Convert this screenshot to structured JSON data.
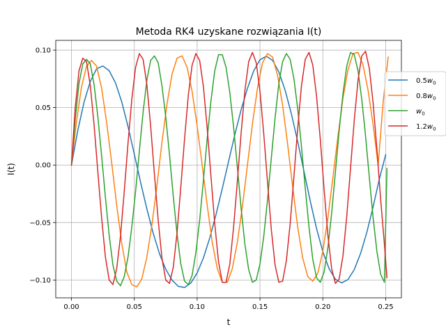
{
  "chart_data": {
    "type": "line",
    "title": "Metoda RK4 uzyskane rozwiązania I(t)",
    "xlabel": "t",
    "ylabel": "I(t)",
    "xlim": [
      -0.0125,
      0.2625
    ],
    "ylim": [
      -0.1155,
      0.1085
    ],
    "xticks": [
      0.0,
      0.05,
      0.1,
      0.15,
      0.2,
      0.25
    ],
    "xtick_labels": [
      "0.00",
      "0.05",
      "0.10",
      "0.15",
      "0.20",
      "0.25"
    ],
    "yticks": [
      -0.1,
      -0.05,
      0.0,
      0.05,
      0.1
    ],
    "ytick_labels": [
      "−0.10",
      "−0.05",
      "0.00",
      "0.05",
      "0.10"
    ],
    "grid": true,
    "legend_position": "right",
    "series": [
      {
        "name": "0.5w0",
        "label_parts": [
          "0.5",
          "w",
          "0"
        ],
        "color": "#1f77b4",
        "x": [
          0.0,
          0.005,
          0.01,
          0.015,
          0.02,
          0.025,
          0.03,
          0.035,
          0.04,
          0.045,
          0.05,
          0.055,
          0.06,
          0.065,
          0.07,
          0.075,
          0.08,
          0.085,
          0.09,
          0.095,
          0.1,
          0.105,
          0.11,
          0.115,
          0.12,
          0.125,
          0.13,
          0.135,
          0.14,
          0.145,
          0.15,
          0.155,
          0.16,
          0.165,
          0.17,
          0.175,
          0.18,
          0.185,
          0.19,
          0.195,
          0.2,
          0.205,
          0.21,
          0.215,
          0.22,
          0.225,
          0.23,
          0.235,
          0.24,
          0.245,
          0.25
        ],
        "y": [
          0.0,
          0.0299,
          0.0547,
          0.0728,
          0.0838,
          0.0862,
          0.0821,
          0.0716,
          0.055,
          0.0335,
          0.0095,
          -0.015,
          -0.0381,
          -0.0592,
          -0.077,
          -0.0906,
          -0.1001,
          -0.1055,
          -0.1065,
          -0.1026,
          -0.0939,
          -0.0807,
          -0.0635,
          -0.0431,
          -0.0204,
          0.0032,
          0.0266,
          0.0482,
          0.0667,
          0.0819,
          0.0916,
          0.0947,
          0.0911,
          0.081,
          0.0651,
          0.0444,
          0.0204,
          -0.0055,
          -0.0314,
          -0.0552,
          -0.0753,
          -0.0902,
          -0.0994,
          -0.1025,
          -0.0996,
          -0.0909,
          -0.077,
          -0.0585,
          -0.0364,
          -0.0119,
          0.009
        ]
      },
      {
        "name": "0.8w0",
        "label_parts": [
          "0.8",
          "w",
          "0"
        ],
        "color": "#ff7f0e",
        "x": [
          0.0,
          0.004,
          0.008,
          0.012,
          0.016,
          0.02,
          0.024,
          0.028,
          0.032,
          0.036,
          0.04,
          0.044,
          0.048,
          0.052,
          0.056,
          0.06,
          0.064,
          0.068,
          0.072,
          0.076,
          0.08,
          0.084,
          0.088,
          0.092,
          0.096,
          0.1,
          0.104,
          0.108,
          0.112,
          0.116,
          0.12,
          0.124,
          0.128,
          0.132,
          0.136,
          0.14,
          0.144,
          0.148,
          0.152,
          0.156,
          0.16,
          0.164,
          0.168,
          0.172,
          0.176,
          0.18,
          0.184,
          0.188,
          0.192,
          0.196,
          0.2,
          0.204,
          0.208,
          0.212,
          0.216,
          0.22,
          0.224,
          0.228,
          0.232,
          0.236,
          0.24,
          0.244,
          0.248,
          0.252
        ],
        "y": [
          0.0,
          0.038,
          0.068,
          0.086,
          0.091,
          0.086,
          0.067,
          0.037,
          0.002,
          -0.035,
          -0.068,
          -0.093,
          -0.104,
          -0.106,
          -0.099,
          -0.08,
          -0.052,
          -0.018,
          0.02,
          0.053,
          0.079,
          0.093,
          0.095,
          0.085,
          0.064,
          0.034,
          0.0,
          -0.035,
          -0.067,
          -0.09,
          -0.102,
          -0.102,
          -0.09,
          -0.067,
          -0.036,
          0.0,
          0.036,
          0.067,
          0.089,
          0.097,
          0.094,
          0.078,
          0.052,
          0.018,
          -0.019,
          -0.054,
          -0.081,
          -0.097,
          -0.101,
          -0.094,
          -0.075,
          -0.046,
          -0.011,
          0.025,
          0.058,
          0.083,
          0.097,
          0.098,
          0.087,
          0.065,
          0.035,
          0.0,
          0.055,
          0.094
        ]
      },
      {
        "name": "w0",
        "label_parts": [
          "",
          "w",
          "0"
        ],
        "color": "#2ca02c",
        "x": [
          0.0,
          0.003,
          0.006,
          0.009,
          0.012,
          0.015,
          0.018,
          0.021,
          0.024,
          0.027,
          0.03,
          0.033,
          0.036,
          0.039,
          0.042,
          0.045,
          0.048,
          0.051,
          0.054,
          0.057,
          0.06,
          0.063,
          0.066,
          0.069,
          0.072,
          0.075,
          0.078,
          0.081,
          0.084,
          0.087,
          0.09,
          0.093,
          0.096,
          0.099,
          0.102,
          0.105,
          0.108,
          0.111,
          0.114,
          0.117,
          0.12,
          0.123,
          0.126,
          0.129,
          0.132,
          0.135,
          0.138,
          0.141,
          0.144,
          0.147,
          0.15,
          0.153,
          0.156,
          0.159,
          0.162,
          0.165,
          0.168,
          0.171,
          0.174,
          0.177,
          0.18,
          0.183,
          0.186,
          0.189,
          0.192,
          0.195,
          0.198,
          0.201,
          0.204,
          0.207,
          0.21,
          0.213,
          0.216,
          0.219,
          0.222,
          0.225,
          0.228,
          0.231,
          0.234,
          0.237,
          0.24,
          0.243,
          0.246,
          0.249,
          0.251
        ],
        "y": [
          0.0,
          0.04,
          0.071,
          0.088,
          0.092,
          0.088,
          0.07,
          0.042,
          0.008,
          -0.028,
          -0.061,
          -0.087,
          -0.101,
          -0.105,
          -0.097,
          -0.08,
          -0.054,
          -0.023,
          0.012,
          0.046,
          0.074,
          0.091,
          0.095,
          0.089,
          0.069,
          0.042,
          0.009,
          -0.027,
          -0.06,
          -0.086,
          -0.101,
          -0.104,
          -0.096,
          -0.076,
          -0.048,
          -0.013,
          0.023,
          0.056,
          0.082,
          0.096,
          0.096,
          0.085,
          0.063,
          0.033,
          -0.002,
          -0.038,
          -0.069,
          -0.091,
          -0.102,
          -0.1,
          -0.086,
          -0.062,
          -0.03,
          0.006,
          0.041,
          0.071,
          0.09,
          0.097,
          0.092,
          0.075,
          0.049,
          0.016,
          -0.02,
          -0.054,
          -0.082,
          -0.098,
          -0.102,
          -0.093,
          -0.072,
          -0.042,
          -0.006,
          0.03,
          0.062,
          0.086,
          0.098,
          0.096,
          0.082,
          0.057,
          0.025,
          -0.011,
          -0.046,
          -0.075,
          -0.095,
          -0.102,
          -0.003
        ]
      },
      {
        "name": "1.2w0",
        "label_parts": [
          "1.2",
          "w",
          "0"
        ],
        "color": "#d62728",
        "x": [
          0.0,
          0.003,
          0.006,
          0.009,
          0.012,
          0.015,
          0.018,
          0.021,
          0.024,
          0.027,
          0.03,
          0.033,
          0.036,
          0.039,
          0.042,
          0.045,
          0.048,
          0.051,
          0.054,
          0.057,
          0.06,
          0.063,
          0.066,
          0.069,
          0.072,
          0.075,
          0.078,
          0.081,
          0.084,
          0.087,
          0.09,
          0.093,
          0.096,
          0.099,
          0.102,
          0.105,
          0.108,
          0.111,
          0.114,
          0.117,
          0.12,
          0.123,
          0.126,
          0.129,
          0.132,
          0.135,
          0.138,
          0.141,
          0.144,
          0.147,
          0.15,
          0.153,
          0.156,
          0.159,
          0.162,
          0.165,
          0.168,
          0.171,
          0.174,
          0.177,
          0.18,
          0.183,
          0.186,
          0.189,
          0.192,
          0.195,
          0.198,
          0.201,
          0.204,
          0.207,
          0.21,
          0.213,
          0.216,
          0.219,
          0.222,
          0.225,
          0.228,
          0.231,
          0.234,
          0.237,
          0.24,
          0.243,
          0.246,
          0.249,
          0.251
        ],
        "y": [
          0.0,
          0.05,
          0.082,
          0.093,
          0.09,
          0.069,
          0.035,
          -0.006,
          -0.046,
          -0.08,
          -0.1,
          -0.104,
          -0.09,
          -0.062,
          -0.023,
          0.019,
          0.057,
          0.085,
          0.097,
          0.092,
          0.07,
          0.034,
          -0.008,
          -0.048,
          -0.081,
          -0.1,
          -0.103,
          -0.089,
          -0.059,
          -0.019,
          0.023,
          0.061,
          0.087,
          0.097,
          0.091,
          0.068,
          0.032,
          -0.01,
          -0.051,
          -0.084,
          -0.102,
          -0.102,
          -0.086,
          -0.054,
          -0.014,
          0.028,
          0.065,
          0.09,
          0.098,
          0.089,
          0.064,
          0.027,
          -0.015,
          -0.056,
          -0.087,
          -0.102,
          -0.101,
          -0.083,
          -0.051,
          -0.01,
          0.032,
          0.069,
          0.092,
          0.098,
          0.087,
          0.06,
          0.022,
          -0.021,
          -0.061,
          -0.09,
          -0.103,
          -0.099,
          -0.079,
          -0.045,
          -0.003,
          0.039,
          0.074,
          0.095,
          0.099,
          0.084,
          0.054,
          0.014,
          -0.03,
          -0.069,
          -0.098
        ]
      }
    ]
  }
}
